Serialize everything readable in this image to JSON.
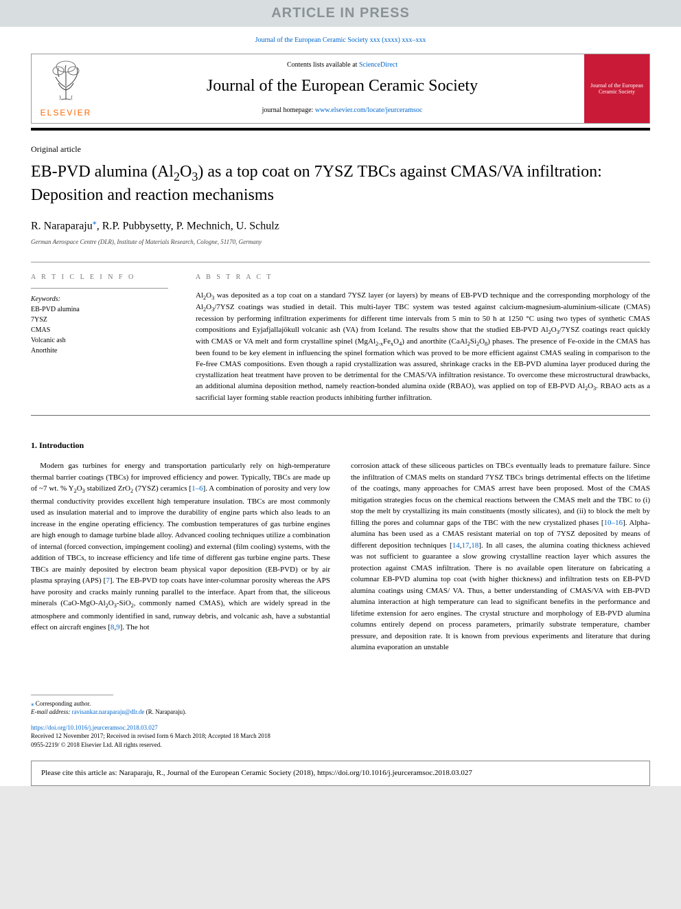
{
  "banner": {
    "text": "ARTICLE IN PRESS"
  },
  "citation_top": "Journal of the European Ceramic Society xxx (xxxx) xxx–xxx",
  "header": {
    "contents_prefix": "Contents lists available at ",
    "contents_link": "ScienceDirect",
    "journal_name": "Journal of the European Ceramic Society",
    "homepage_prefix": "journal homepage: ",
    "homepage_url": "www.elsevier.com/locate/jeurceramsoc",
    "publisher_text": "ELSEVIER",
    "cover_title": "Journal of the European Ceramic Society"
  },
  "article": {
    "type": "Original article",
    "title_html": "EB-PVD alumina (Al<sub>2</sub>O<sub>3</sub>) as a top coat on 7YSZ TBCs against CMAS/VA infiltration: Deposition and reaction mechanisms",
    "authors_html": "R. Naraparaju<span class=\"corr-mark\">⁎</span>, R.P. Pubbysetty, P. Mechnich, U. Schulz",
    "affiliation": "German Aerospace Centre (DLR), Institute of Materials Research, Cologne, 51170, Germany"
  },
  "info": {
    "heading": "A R T I C L E  I N F O",
    "keywords_label": "Keywords:",
    "keywords": [
      "EB-PVD alumina",
      "7YSZ",
      "CMAS",
      "Volcanic ash",
      "Anorthite"
    ]
  },
  "abstract": {
    "heading": "A B S T R A C T",
    "text_html": "Al<sub>2</sub>O<sub>3</sub> was deposited as a top coat on a standard 7YSZ layer (or layers) by means of EB-PVD technique and the corresponding morphology of the Al<sub>2</sub>O<sub>3</sub>/7YSZ coatings was studied in detail. This multi-layer TBC system was tested against calcium-magnesium-aluminium-silicate (CMAS) recession by performing infiltration experiments for different time intervals from 5 min to 50 h at 1250 °C using two types of synthetic CMAS compositions and Eyjafjallajökull volcanic ash (VA) from Iceland. The results show that the studied EB-PVD Al<sub>2</sub>O<sub>3</sub>/7YSZ coatings react quickly with CMAS or VA melt and form crystalline spinel (MgAl<sub>2-x</sub>Fe<sub>x</sub>O<sub>4</sub>) and anorthite (CaAl<sub>2</sub>Si<sub>2</sub>O<sub>8</sub>) phases. The presence of Fe-oxide in the CMAS has been found to be key element in influencing the spinel formation which was proved to be more efficient against CMAS sealing in comparison to the Fe-free CMAS compositions. Even though a rapid crystallization was assured, shrinkage cracks in the EB-PVD alumina layer produced during the crystallization heat treatment have proven to be detrimental for the CMAS/VA infiltration resistance. To overcome these microstructural drawbacks, an additional alumina deposition method, namely reaction-bonded alumina oxide (RBAO), was applied on top of EB-PVD Al<sub>2</sub>O<sub>3</sub>. RBAO acts as a sacrificial layer forming stable reaction products inhibiting further infiltration."
  },
  "section1": {
    "heading": "1. Introduction",
    "col1_html": "Modern gas turbines for energy and transportation particularly rely on high-temperature thermal barrier coatings (TBCs) for improved efficiency and power. Typically, TBCs are made up of ~7 wt. % Y<sub>2</sub>O<sub>3</sub> stabilized ZrO<sub>2</sub> (7YSZ) ceramics [<span class=\"ref-link\">1–6</span>]. A combination of porosity and very low thermal conductivity provides excellent high temperature insulation. TBCs are most commonly used as insulation material and to improve the durability of engine parts which also leads to an increase in the engine operating efficiency. The combustion temperatures of gas turbine engines are high enough to damage turbine blade alloy. Advanced cooling techniques utilize a combination of internal (forced convection, impingement cooling) and external (film cooling) systems, with the addition of TBCs, to increase efficiency and life time of different gas turbine engine parts. These TBCs are mainly deposited by electron beam physical vapor deposition (EB-PVD) or by air plasma spraying (APS) [<span class=\"ref-link\">7</span>]. The EB-PVD top coats have inter-columnar porosity whereas the APS have porosity and cracks mainly running parallel to the interface. Apart from that, the siliceous minerals (CaO-MgO-Al<sub>2</sub>O<sub>3</sub>-SiO<sub>2</sub>, commonly named CMAS), which are widely spread in the atmosphere and commonly identified in sand, runway debris, and volcanic ash, have a substantial effect on aircraft engines [<span class=\"ref-link\">8</span>,<span class=\"ref-link\">9</span>]. The hot",
    "col2_html": "corrosion attack of these siliceous particles on TBCs eventually leads to premature failure. Since the infiltration of CMAS melts on standard 7YSZ TBCs brings detrimental effects on the lifetime of the coatings, many approaches for CMAS arrest have been proposed. Most of the CMAS mitigation strategies focus on the chemical reactions between the CMAS melt and the TBC to (i) stop the melt by crystallizing its main constituents (mostly silicates), and (ii) to block the melt by filling the pores and columnar gaps of the TBC with the new crystalized phases [<span class=\"ref-link\">10–16</span>]. Alpha-alumina has been used as a CMAS resistant material on top of 7YSZ deposited by means of different deposition techniques [<span class=\"ref-link\">14</span>,<span class=\"ref-link\">17</span>,<span class=\"ref-link\">18</span>]. In all cases, the alumina coating thickness achieved was not sufficient to guarantee a slow growing crystalline reaction layer which assures the protection against CMAS infiltration. There is no available open literature on fabricating a columnar EB-PVD alumina top coat (with higher thickness) and infiltration tests on EB-PVD alumina coatings using CMAS/ VA. Thus, a better understanding of CMAS/VA with EB-PVD alumina interaction at high temperature can lead to significant benefits in the performance and lifetime extension for aero engines. The crystal structure and morphology of EB-PVD alumina columns entirely depend on process parameters, primarily substrate temperature, chamber pressure, and deposition rate. It is known from previous experiments and literature that during alumina evaporation an unstable"
  },
  "footnotes": {
    "corr": "Corresponding author.",
    "email_label": "E-mail address:",
    "email": "ravisankar.naraparaju@dlr.de",
    "email_suffix": "(R. Naraparaju)."
  },
  "doi": {
    "url": "https://doi.org/10.1016/j.jeurceramsoc.2018.03.027",
    "history": "Received 12 November 2017; Received in revised form 6 March 2018; Accepted 18 March 2018",
    "issn": "0955-2219/ © 2018 Elsevier Ltd. All rights reserved."
  },
  "citebox": {
    "text": "Please cite this article as: Naraparaju, R., Journal of the European Ceramic Society (2018), https://doi.org/10.1016/j.jeurceramsoc.2018.03.027"
  },
  "colors": {
    "banner_bg": "#d8dde0",
    "banner_fg": "#8a9296",
    "link": "#0066cc",
    "elsevier": "#ff6600",
    "cover": "#c91b37"
  }
}
